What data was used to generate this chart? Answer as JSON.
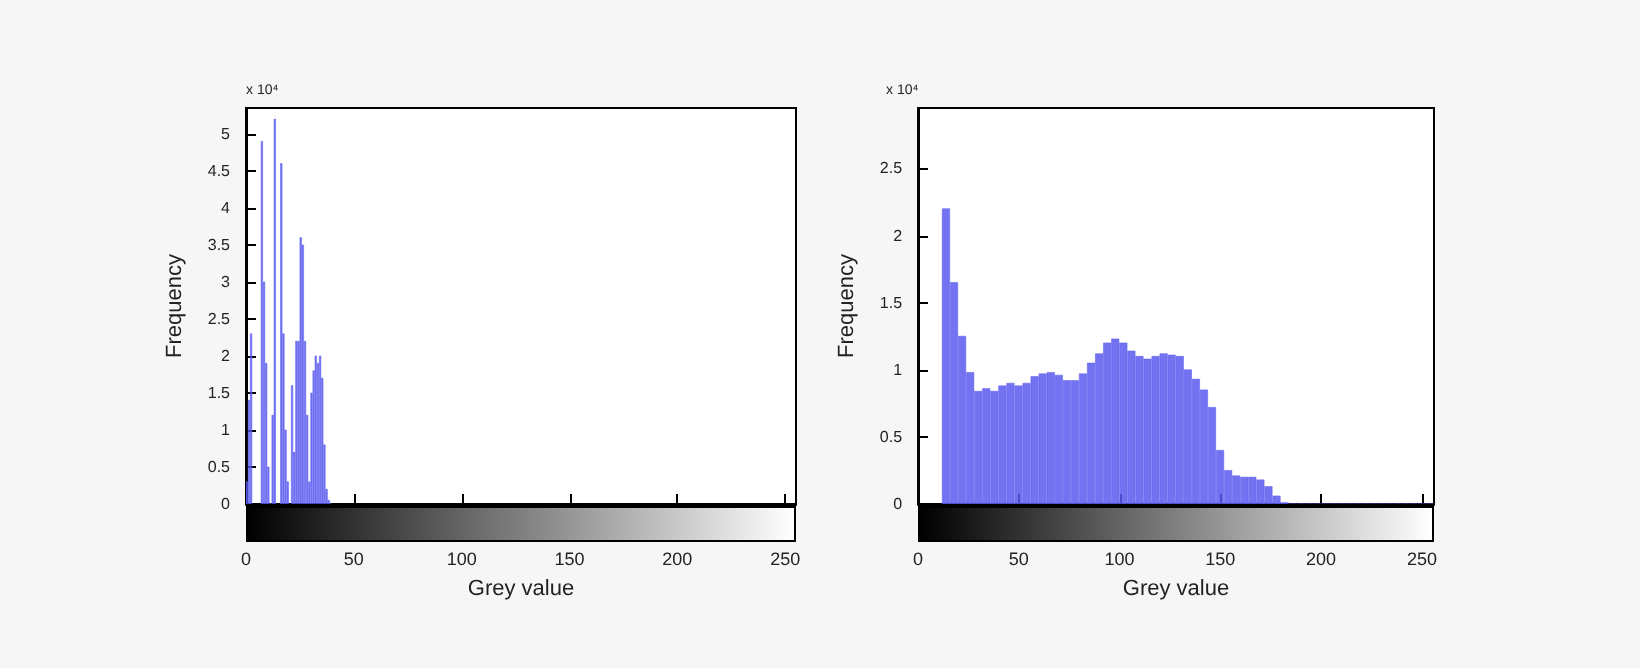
{
  "chart_data": [
    {
      "type": "histogram",
      "xlabel": "Grey value",
      "ylabel": "Frequency",
      "annotations": [
        "x 10⁴"
      ],
      "color": "#5a5af0",
      "bins": [
        0,
        1,
        2,
        3,
        4,
        5,
        6,
        7,
        8,
        9,
        10,
        11,
        12,
        13,
        14,
        15,
        16,
        17,
        18,
        19,
        20,
        21,
        22,
        23,
        24,
        25,
        26,
        27,
        28,
        29,
        30,
        31,
        32,
        33,
        34,
        35,
        36,
        37,
        38,
        39,
        40
      ],
      "values": [
        0.3,
        1.4,
        2.3,
        null,
        null,
        null,
        null,
        4.9,
        3.0,
        1.9,
        0.5,
        0,
        1.2,
        5.2,
        null,
        null,
        4.6,
        2.3,
        1.0,
        0.3,
        null,
        1.6,
        0.7,
        2.2,
        2.2,
        3.6,
        3.5,
        2.2,
        1.2,
        0.3,
        1.5,
        1.8,
        2.0,
        1.9,
        2.0,
        1.7,
        0.8,
        0.2,
        0.05,
        0
      ],
      "xlim": [
        0,
        255
      ],
      "xticks": [
        0,
        50,
        100,
        150,
        200,
        250
      ],
      "ylim": [
        0,
        5.35
      ],
      "yticks": [
        0,
        0.5,
        1,
        1.5,
        2,
        2.5,
        3,
        3.5,
        4,
        4.5,
        5
      ]
    },
    {
      "type": "histogram",
      "xlabel": "Grey value",
      "ylabel": "Frequency",
      "annotations": [
        "x 10⁴"
      ],
      "color": "#5a5af0",
      "bins": [
        0,
        4,
        8,
        12,
        16,
        20,
        24,
        28,
        32,
        36,
        40,
        44,
        48,
        52,
        56,
        60,
        64,
        68,
        72,
        76,
        80,
        84,
        88,
        92,
        96,
        100,
        104,
        108,
        112,
        116,
        120,
        124,
        128,
        132,
        136,
        140,
        144,
        148,
        152,
        156,
        160,
        164,
        168,
        172,
        176,
        180,
        184,
        188,
        192,
        196,
        200,
        204,
        208,
        212,
        216,
        220,
        224,
        228,
        232,
        236,
        240,
        244,
        248,
        252,
        256
      ],
      "values": [
        null,
        null,
        null,
        2.2,
        1.65,
        1.25,
        0.98,
        0.84,
        0.86,
        0.84,
        0.88,
        0.9,
        0.88,
        0.9,
        0.95,
        0.97,
        0.98,
        0.96,
        0.92,
        0.92,
        0.97,
        1.05,
        1.12,
        1.2,
        1.23,
        1.2,
        1.14,
        1.1,
        1.08,
        1.1,
        1.12,
        1.11,
        1.1,
        1.0,
        0.93,
        0.85,
        0.72,
        0.4,
        0.25,
        0.21,
        0.2,
        0.2,
        0.18,
        0.13,
        0.06,
        0.01,
        0,
        0,
        0,
        0,
        0,
        0,
        0,
        0,
        0,
        0,
        0,
        0,
        0,
        0,
        0,
        0,
        0,
        0
      ],
      "xlim": [
        0,
        256
      ],
      "xticks": [
        0,
        50,
        100,
        150,
        200,
        250
      ],
      "ylim": [
        0,
        2.95
      ],
      "yticks": [
        0,
        0.5,
        1,
        1.5,
        2,
        2.5
      ]
    }
  ]
}
